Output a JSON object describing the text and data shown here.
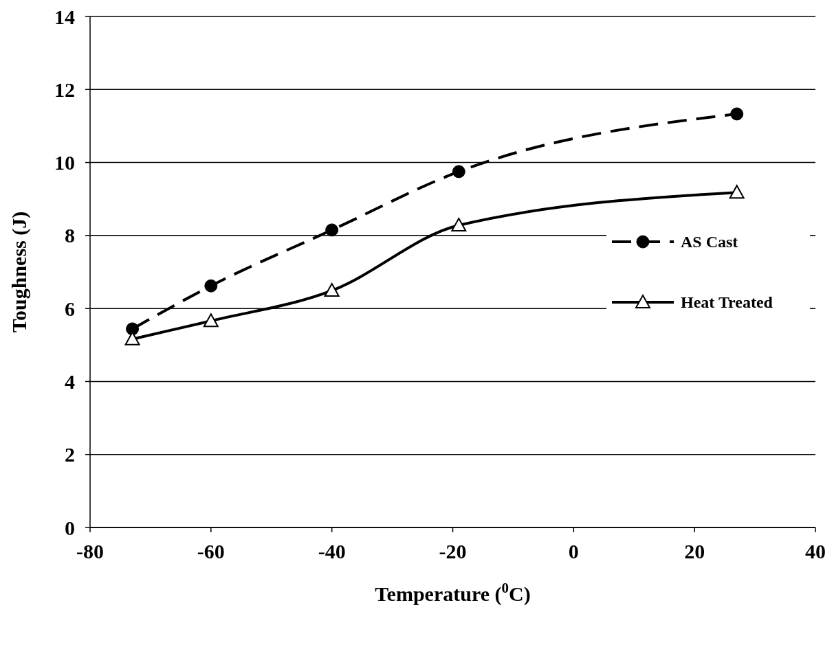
{
  "chart_data": {
    "type": "line",
    "xlabel": "Temperature ($^{0}$C)",
    "ylabel": "Toughness (J)",
    "xlim": [
      -80,
      40
    ],
    "xticks": [
      -80,
      -60,
      -40,
      -20,
      0,
      20,
      40
    ],
    "ylim": [
      0,
      14
    ],
    "yticks": [
      0,
      2,
      4,
      6,
      8,
      10,
      12,
      14
    ],
    "grid": "y",
    "legend": "right",
    "series": [
      {
        "name": "AS Cast",
        "color": "#000000",
        "marker": "circle",
        "line_style": "dashed",
        "x": [
          -73,
          -60,
          -40,
          -19,
          27
        ],
        "values": [
          5.44,
          6.62,
          8.15,
          9.75,
          11.33
        ]
      },
      {
        "name": "Heat Treated",
        "color": "#000000",
        "marker": "triangle",
        "line_style": "solid",
        "x": [
          -73,
          -60,
          -40,
          -19,
          27
        ],
        "values": [
          5.16,
          5.66,
          6.49,
          8.28,
          9.18
        ]
      }
    ]
  }
}
